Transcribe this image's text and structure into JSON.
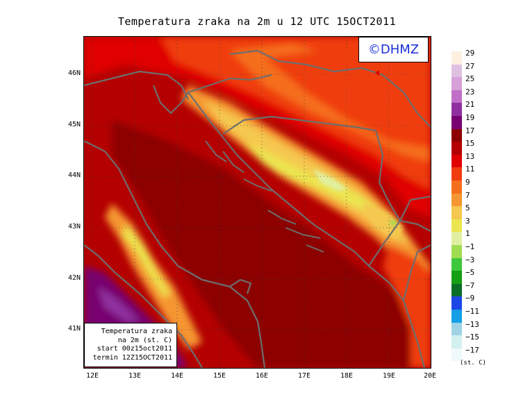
{
  "title": "Temperatura zraka na 2m u 12 UTC 15OCT2011",
  "logo": "©DHMZ",
  "info": {
    "line1": "Temperatura zraka",
    "line2": "na 2m (st. C)",
    "line3": "start 00z15oct2011",
    "line4": "termin 12Z15OCT2011"
  },
  "axes": {
    "y_ticks": [
      "46N",
      "45N",
      "44N",
      "43N",
      "42N",
      "41N"
    ],
    "x_ticks": [
      "12E",
      "13E",
      "14E",
      "15E",
      "16E",
      "17E",
      "18E",
      "19E",
      "20E"
    ],
    "lon_range": [
      11.8,
      20.0
    ],
    "lat_range": [
      40.25,
      46.75
    ]
  },
  "legend": {
    "units": "(st. C)",
    "labels": [
      "29",
      "27",
      "25",
      "23",
      "21",
      "19",
      "17",
      "15",
      "13",
      "11",
      "9",
      "7",
      "5",
      "3",
      "1",
      "-1",
      "-3",
      "-5",
      "-7",
      "-9",
      "-11",
      "-13",
      "-15",
      "-17"
    ],
    "colors": [
      "#fdf0e0",
      "#e0c0e0",
      "#d8a0d8",
      "#c070c8",
      "#9030a0",
      "#780070",
      "#8c0000",
      "#b40000",
      "#e00000",
      "#f03c10",
      "#f56e1e",
      "#f59632",
      "#f5c850",
      "#ebe650",
      "#e1f0a0",
      "#a0dc50",
      "#3cc83c",
      "#14a014",
      "#0a6e28",
      "#1e46e6",
      "#14a0e6",
      "#a0d2e6",
      "#d2f0f0",
      "#f0fafa"
    ]
  }
}
